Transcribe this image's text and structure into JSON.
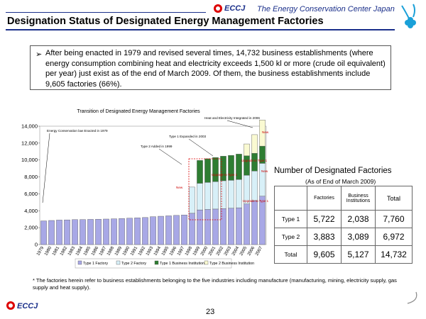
{
  "header": {
    "org_name": "The Energy Conservation Center Japan",
    "logo_text": "ECCJ",
    "title": "Designation Status of Designated Energy Management Factories"
  },
  "summary": {
    "bullet": "➢",
    "text": "After being enacted in 1979 and revised several times, 14,732 business establishments (where energy consumption combining heat and electricity exceeds 1,500 kl or more (crude oil equivalent) per year) just exist as of the end of March 2009. Of them, the business establishments include 9,605  factories (66%)."
  },
  "chart_data": {
    "type": "bar",
    "stacked": true,
    "title": "Transition of Designated Energy Management Factories",
    "xlabel": "",
    "ylabel": "",
    "ylim": [
      0,
      14000
    ],
    "yticks": [
      "0",
      "2,000",
      "4,000",
      "6,000",
      "8,000",
      "10,000",
      "12,000",
      "14,000"
    ],
    "categories": [
      "1979",
      "1980",
      "1981",
      "1982",
      "1983",
      "1984",
      "1985",
      "1986",
      "1987",
      "1988",
      "1989",
      "1990",
      "1991",
      "1992",
      "1993",
      "1994",
      "1995",
      "1996",
      "1997",
      "1998",
      "1999",
      "2000",
      "2001",
      "2002",
      "2003",
      "2004",
      "2005",
      "2006",
      "2007"
    ],
    "series": [
      {
        "name": "Type 1 Factory",
        "color": "#a8a8e6",
        "values": [
          2800,
          2850,
          2900,
          2920,
          2950,
          2960,
          2980,
          3000,
          3020,
          3050,
          3080,
          3120,
          3160,
          3200,
          3300,
          3350,
          3400,
          3450,
          3500,
          3700,
          4100,
          4150,
          4200,
          4250,
          4300,
          4350,
          4800,
          5200,
          5722
        ]
      },
      {
        "name": "Type 2 Factory",
        "color": "#d8f0f8",
        "values": [
          0,
          0,
          0,
          0,
          0,
          0,
          0,
          0,
          0,
          0,
          0,
          0,
          0,
          0,
          0,
          0,
          0,
          0,
          0,
          3100,
          3150,
          3200,
          3250,
          3300,
          3300,
          3350,
          3400,
          3500,
          3883
        ]
      },
      {
        "name": "Type 1 Business Institution",
        "color": "#2e7d32",
        "values": [
          0,
          0,
          0,
          0,
          0,
          0,
          0,
          0,
          0,
          0,
          0,
          0,
          0,
          0,
          0,
          0,
          0,
          0,
          0,
          0,
          2700,
          2800,
          2850,
          2900,
          2950,
          3000,
          2300,
          2100,
          2038
        ]
      },
      {
        "name": "Type 2 Business Institution",
        "color": "#fafad2",
        "values": [
          0,
          0,
          0,
          0,
          0,
          0,
          0,
          0,
          0,
          0,
          0,
          0,
          0,
          0,
          0,
          0,
          0,
          0,
          0,
          0,
          0,
          0,
          0,
          0,
          0,
          0,
          1400,
          2200,
          3089
        ]
      }
    ],
    "annotations": [
      "Energy Conservation law Enacted in 1979",
      "Type 1 Expanded in 2003",
      "Type 2 Added in 1999",
      "Heat and Electricity Integrated in 2006",
      "Upgrade to Type 1",
      "Upgrade to Type 1",
      "Upgrade to Type 1",
      "New",
      "New",
      "New"
    ]
  },
  "table": {
    "title": "Number of Designated Factories",
    "subtitle": "(As of End of March 2009)",
    "headers": [
      "Factories",
      "Business Institutions",
      "Total"
    ],
    "rows": [
      {
        "label": "Type 1",
        "values": [
          "5,722",
          "2,038",
          "7,760"
        ]
      },
      {
        "label": "Type 2",
        "values": [
          "3,883",
          "3,089",
          "6,972"
        ]
      },
      {
        "label": "Total",
        "values": [
          "9,605",
          "5,127",
          "14,732"
        ]
      }
    ]
  },
  "footnote": "* The factories herein refer  to business establishments belonging to the five industries including  manufacture (manufacturing, mining, electricity supply, gas supply  and  heat  supply).",
  "footer": {
    "page_number": "23",
    "logo_text": "ECCJ"
  }
}
